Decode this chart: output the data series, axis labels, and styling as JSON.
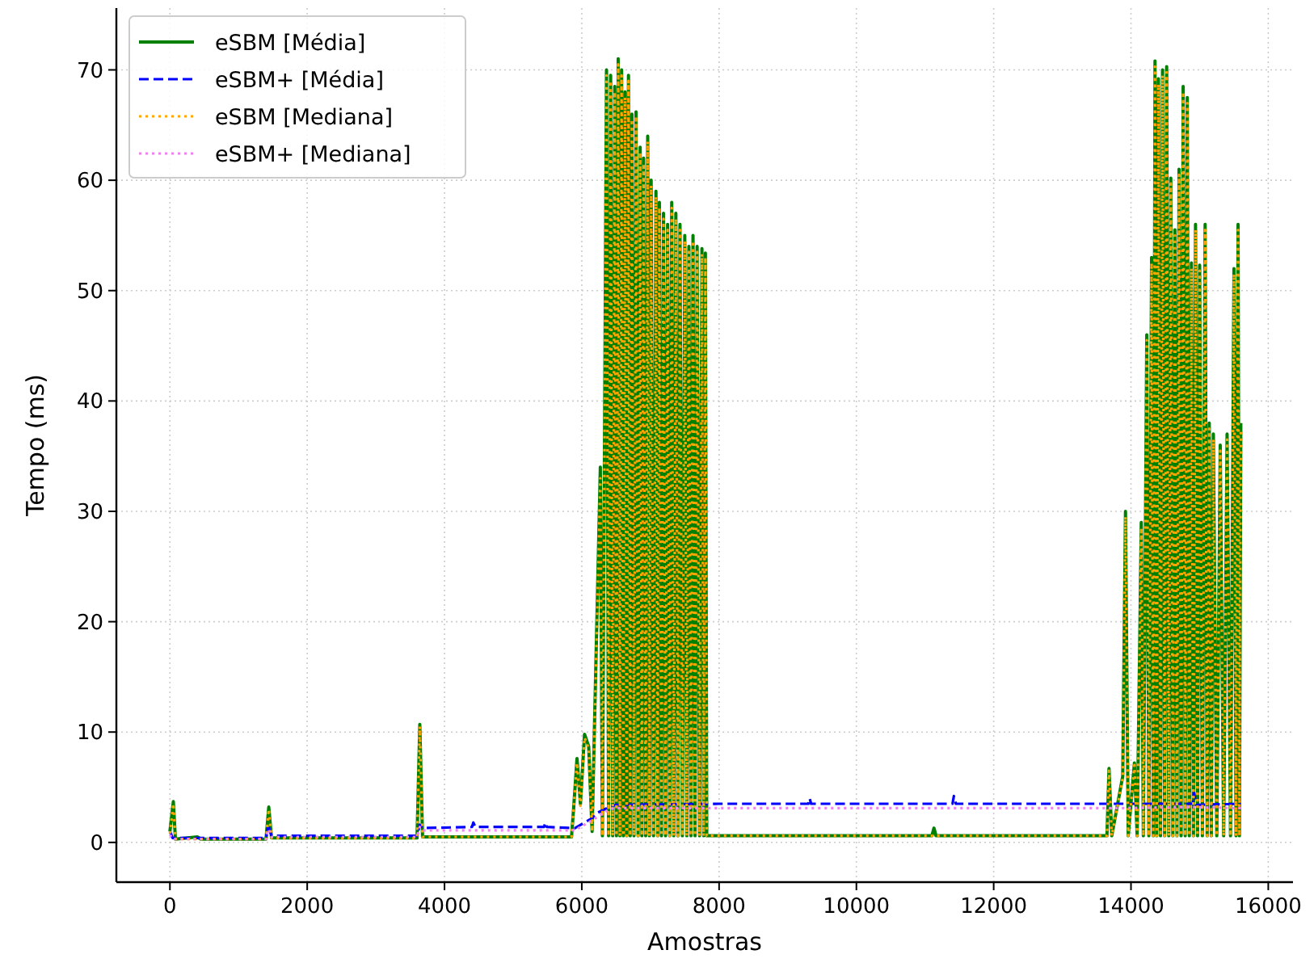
{
  "chart_data": {
    "type": "line",
    "xlabel": "Amostras",
    "ylabel": "Tempo (ms)",
    "xlim": [
      -780,
      16360
    ],
    "ylim": [
      -3.6,
      75.6
    ],
    "xticks": [
      0,
      2000,
      4000,
      6000,
      8000,
      10000,
      12000,
      14000,
      16000
    ],
    "yticks": [
      0,
      10,
      20,
      30,
      40,
      50,
      60,
      70
    ],
    "grid": true,
    "legend": "top left",
    "series": [
      {
        "name": "eSBM [Média]",
        "color": "#008000",
        "line_style": "solid",
        "x": [
          0,
          50,
          80,
          400,
          450,
          1400,
          1440,
          1480,
          3600,
          3640,
          3680,
          5850,
          5880,
          5930,
          5980,
          6040,
          6100,
          6150,
          6270,
          6300,
          6360,
          6390,
          6420,
          6450,
          6480,
          6505,
          6530,
          6555,
          6580,
          6605,
          6630,
          6655,
          6680,
          6705,
          6730,
          6760,
          6790,
          6820,
          6850,
          6875,
          6900,
          6930,
          6960,
          6985,
          7010,
          7045,
          7080,
          7105,
          7130,
          7160,
          7190,
          7220,
          7250,
          7280,
          7310,
          7340,
          7370,
          7400,
          7430,
          7465,
          7500,
          7530,
          7560,
          7590,
          7620,
          7650,
          7680,
          7715,
          7750,
          7775,
          7800,
          7820,
          11100,
          11130,
          11160,
          13650,
          13680,
          13720,
          13880,
          13920,
          13960,
          14050,
          14090,
          14150,
          14180,
          14230,
          14260,
          14300,
          14325,
          14350,
          14375,
          14400,
          14430,
          14460,
          14490,
          14520,
          14550,
          14580,
          14610,
          14640,
          14670,
          14700,
          14730,
          14760,
          14790,
          14820,
          14850,
          14880,
          14910,
          14940,
          14970,
          15000,
          15040,
          15080,
          15110,
          15140,
          15170,
          15200,
          15250,
          15300,
          15350,
          15400,
          15450,
          15500,
          15530,
          15560,
          15580,
          15600
        ],
        "values": [
          1.0,
          3.7,
          0.3,
          0.5,
          0.3,
          0.3,
          3.2,
          0.4,
          0.4,
          10.7,
          0.5,
          0.5,
          3.0,
          7.6,
          3.5,
          9.8,
          8.7,
          1.0,
          34,
          0.6,
          70,
          0.6,
          69.5,
          0.6,
          68.5,
          0.6,
          71,
          0.6,
          70,
          0.6,
          68,
          0.6,
          69.5,
          0.6,
          66,
          0.6,
          66.2,
          0.6,
          63,
          0.6,
          62,
          0.6,
          64,
          0.6,
          60,
          0.6,
          59,
          0.6,
          58,
          0.6,
          57,
          0.6,
          56,
          0.6,
          58,
          0.6,
          57,
          0.6,
          56,
          0.6,
          55,
          0.6,
          54,
          0.6,
          55,
          0.6,
          54,
          0.6,
          53.8,
          0.6,
          53.4,
          0.6,
          0.6,
          1.3,
          0.6,
          0.6,
          6.7,
          0.6,
          6,
          30,
          0.6,
          7.2,
          0.6,
          29,
          0.6,
          46,
          0.6,
          53,
          0.6,
          70.8,
          0.6,
          69.2,
          0.6,
          70,
          0.6,
          70.3,
          0.6,
          60.2,
          0.6,
          55.5,
          0.6,
          61,
          0.6,
          68.5,
          0.6,
          67.5,
          0.6,
          52.5,
          0.6,
          56,
          0.6,
          52.3,
          0.6,
          56,
          0.6,
          38,
          0.6,
          37,
          0.6,
          36,
          0.6,
          37,
          0.6,
          52,
          0.6,
          56,
          0.6,
          38
        ]
      },
      {
        "name": "eSBM+ [Média]",
        "color": "#0000ff",
        "line_style": "dashed",
        "x": [
          0,
          40,
          1400,
          1430,
          1480,
          3600,
          3640,
          3680,
          4400,
          4420,
          4450,
          5450,
          5470,
          5490,
          5900,
          6150,
          6200,
          6400,
          6500,
          8000,
          9300,
          9320,
          9340,
          11400,
          11420,
          11450,
          13700,
          14900,
          14920,
          14950,
          15600
        ],
        "values": [
          1.0,
          0.4,
          0.4,
          1.6,
          0.6,
          0.6,
          1.6,
          1.3,
          1.4,
          1.8,
          1.4,
          1.4,
          1.8,
          1.4,
          1.3,
          2.2,
          2.6,
          3.2,
          3.4,
          3.5,
          3.5,
          4.0,
          3.5,
          3.5,
          4.2,
          3.5,
          3.5,
          3.5,
          4.5,
          3.4,
          3.5
        ]
      },
      {
        "name": "eSBM [Mediana]",
        "color": "#ffa500",
        "line_style": "dotted",
        "x": [
          0,
          50,
          80,
          1400,
          1440,
          1480,
          3600,
          3640,
          3680,
          5850,
          5930,
          5980,
          6040,
          6100,
          6150,
          6270,
          6300,
          6360,
          6390,
          6420,
          6450,
          6480,
          6505,
          6530,
          6555,
          6580,
          6605,
          6630,
          6655,
          6680,
          6705,
          6730,
          6760,
          6790,
          6820,
          6850,
          6875,
          6900,
          6930,
          6960,
          6985,
          7010,
          7045,
          7080,
          7105,
          7130,
          7160,
          7190,
          7220,
          7250,
          7280,
          7310,
          7340,
          7370,
          7400,
          7430,
          7465,
          7500,
          7530,
          7560,
          7590,
          7620,
          7650,
          7680,
          7715,
          7750,
          7775,
          7800,
          7820,
          13650,
          13680,
          13720,
          13880,
          13920,
          13960,
          14050,
          14090,
          14150,
          14180,
          14230,
          14260,
          14300,
          14325,
          14350,
          14375,
          14400,
          14430,
          14460,
          14490,
          14520,
          14550,
          14580,
          14610,
          14640,
          14670,
          14700,
          14730,
          14760,
          14790,
          14820,
          14850,
          14880,
          14910,
          14940,
          14970,
          15000,
          15040,
          15080,
          15110,
          15140,
          15170,
          15200,
          15250,
          15300,
          15350,
          15400,
          15450,
          15500,
          15530,
          15560,
          15580,
          15600
        ],
        "values": [
          0.8,
          3.5,
          0.3,
          0.3,
          3.0,
          0.4,
          0.4,
          10.5,
          0.5,
          0.5,
          7.2,
          3.3,
          9.5,
          8.5,
          1.0,
          33,
          0.6,
          69.5,
          0.6,
          69,
          0.6,
          68,
          0.6,
          70.5,
          0.6,
          69.5,
          0.6,
          67.5,
          0.6,
          69,
          0.6,
          65.5,
          0.6,
          65.8,
          0.6,
          62.5,
          0.6,
          61.5,
          0.6,
          63.5,
          0.6,
          59.5,
          0.6,
          58.5,
          0.6,
          57.5,
          0.6,
          56.5,
          0.6,
          55.5,
          0.6,
          57.5,
          0.6,
          56.5,
          0.6,
          55.5,
          0.6,
          54.5,
          0.6,
          53.5,
          0.6,
          54.5,
          0.6,
          53.5,
          0.6,
          53.3,
          0.6,
          53,
          0.6,
          0.6,
          6.5,
          0.6,
          5.8,
          29.5,
          0.6,
          7,
          0.6,
          28.5,
          0.6,
          45.5,
          0.6,
          52.5,
          0.6,
          70.3,
          0.6,
          68.7,
          0.6,
          69.5,
          0.6,
          69.8,
          0.6,
          59.7,
          0.6,
          55,
          0.6,
          60.5,
          0.6,
          68,
          0.6,
          67,
          0.6,
          52,
          0.6,
          55.5,
          0.6,
          51.8,
          0.6,
          55.5,
          0.6,
          37.5,
          0.6,
          36.5,
          0.6,
          35.5,
          0.6,
          36.5,
          0.6,
          51.5,
          0.6,
          55.5,
          0.6,
          37.5
        ]
      },
      {
        "name": "eSBM+ [Mediana]",
        "color": "#ee82ee",
        "line_style": "dotted",
        "x": [
          0,
          40,
          1400,
          1430,
          1480,
          3600,
          3640,
          3680,
          5900,
          6150,
          6400,
          6500,
          8000,
          11400,
          13700,
          14900,
          15600
        ],
        "values": [
          0.7,
          0.3,
          0.3,
          1.2,
          0.5,
          0.5,
          1.4,
          1.1,
          1.1,
          2.0,
          3.0,
          3.1,
          3.1,
          3.1,
          3.1,
          3.2,
          3.1
        ]
      }
    ]
  }
}
